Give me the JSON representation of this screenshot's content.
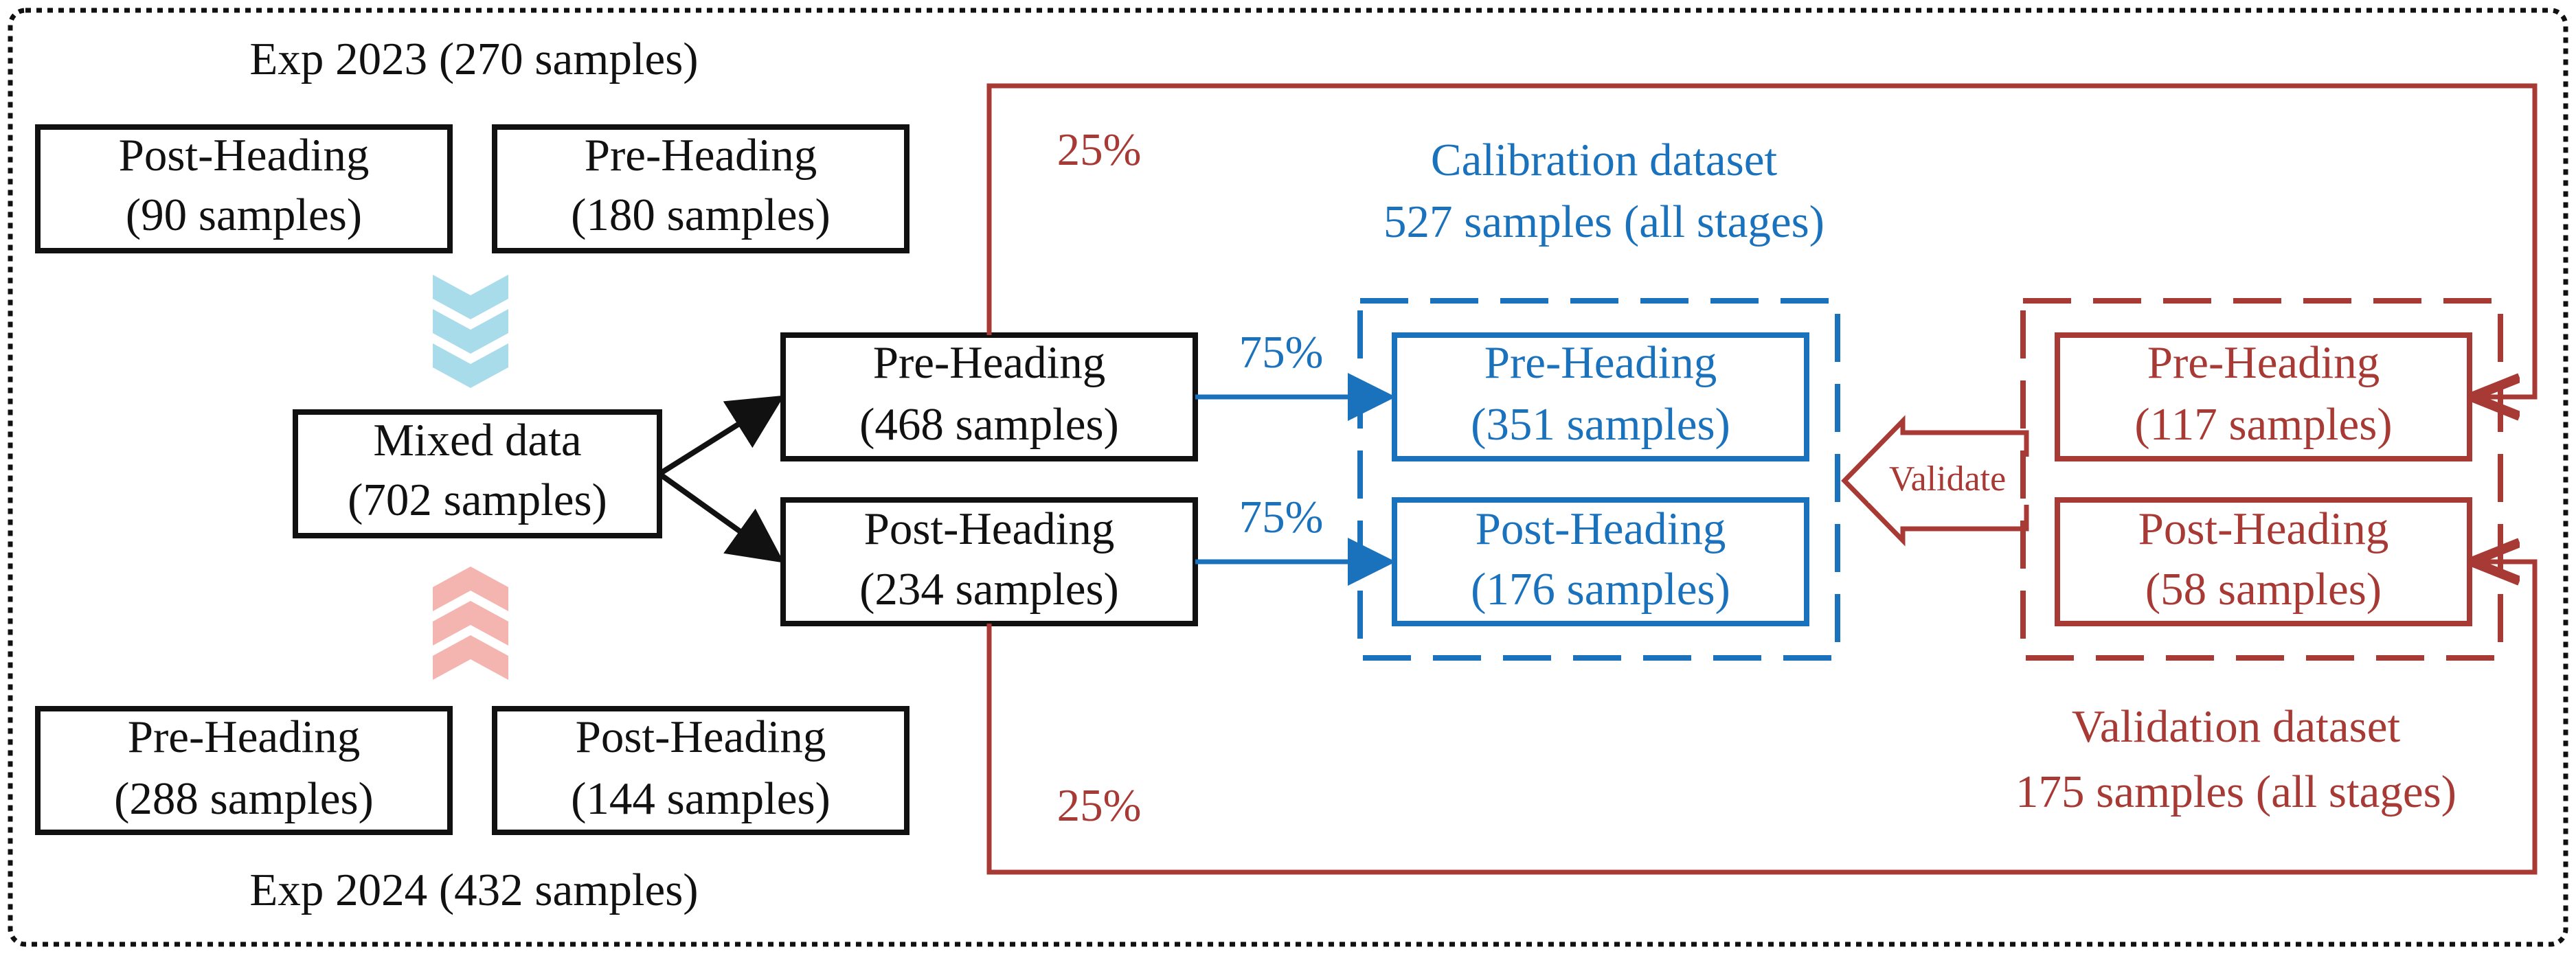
{
  "exp2023": {
    "title": "Exp 2023 (270 samples)",
    "post": {
      "label": "Post-Heading",
      "count": "(90 samples)"
    },
    "pre": {
      "label": "Pre-Heading",
      "count": "(180 samples)"
    }
  },
  "exp2024": {
    "title": "Exp 2024 (432 samples)",
    "pre": {
      "label": "Pre-Heading",
      "count": "(288 samples)"
    },
    "post": {
      "label": "Post-Heading",
      "count": "(144 samples)"
    }
  },
  "mixed": {
    "label": "Mixed data",
    "count": "(702 samples)"
  },
  "split": {
    "pre": {
      "label": "Pre-Heading",
      "count": "(468 samples)"
    },
    "post": {
      "label": "Post-Heading",
      "count": "(234 samples)"
    }
  },
  "calibration": {
    "title": "Calibration dataset",
    "subtitle": "527 samples (all stages)",
    "pre": {
      "label": "Pre-Heading",
      "count": "(351 samples)"
    },
    "post": {
      "label": "Post-Heading",
      "count": "(176 samples)"
    },
    "pct_pre": "75%",
    "pct_post": "75%"
  },
  "validation": {
    "title": "Validation dataset",
    "subtitle": "175 samples (all stages)",
    "pre": {
      "label": "Pre-Heading",
      "count": "(117 samples)"
    },
    "post": {
      "label": "Post-Heading",
      "count": "(58 samples)"
    },
    "pct_top": "25%",
    "pct_bottom": "25%",
    "validate_label": "Validate"
  },
  "colors": {
    "black": "#111111",
    "blue": "#1a72bd",
    "red": "#a83a35",
    "chevron_blue": "#a9dcea",
    "chevron_pink": "#f4b4b0"
  }
}
